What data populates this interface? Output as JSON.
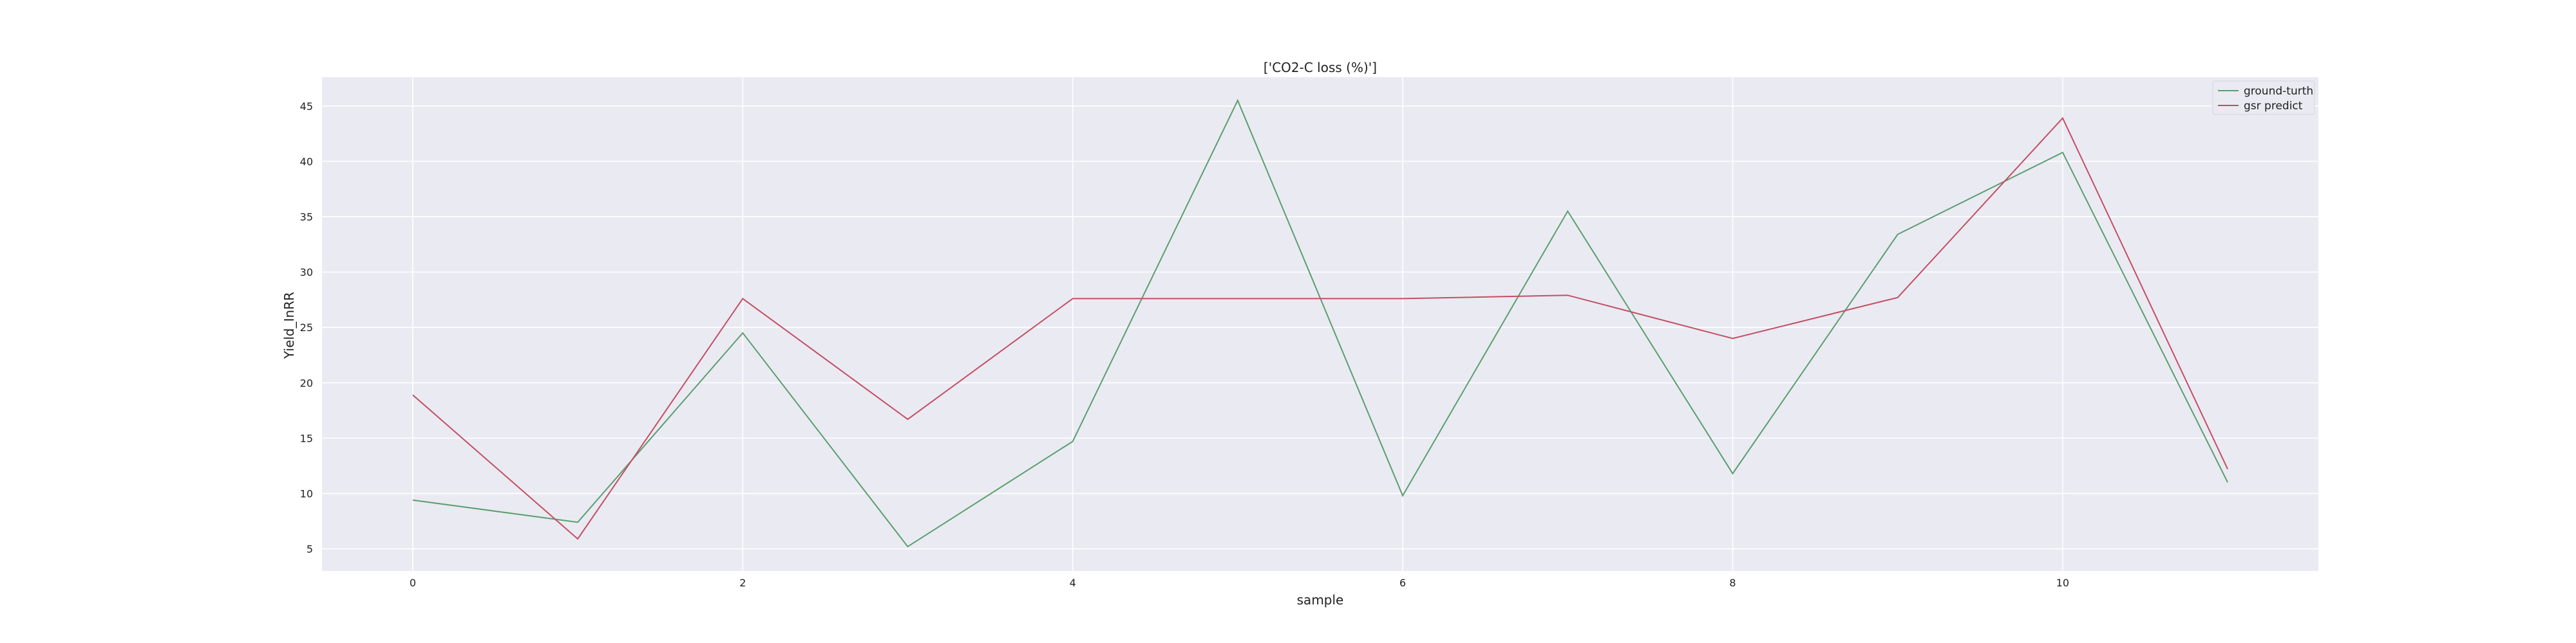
{
  "chart_data": {
    "type": "line",
    "title": "['CO2-C loss (%)']",
    "xlabel": "sample",
    "ylabel": "Yield_InRR",
    "x": [
      0,
      1,
      2,
      3,
      4,
      5,
      6,
      7,
      8,
      9,
      10,
      11
    ],
    "xlim": [
      -0.55,
      11.55
    ],
    "ylim": [
      3.0,
      47.6
    ],
    "xticks": [
      0,
      2,
      4,
      6,
      8,
      10
    ],
    "yticks": [
      5,
      10,
      15,
      20,
      25,
      30,
      35,
      40,
      45
    ],
    "grid": true,
    "legend_position": "top-right",
    "series": [
      {
        "name": "ground-turth",
        "color": "#5a9e6f",
        "values": [
          9.4,
          7.4,
          24.5,
          5.2,
          14.7,
          45.5,
          9.8,
          35.5,
          11.8,
          33.4,
          40.8,
          11.0
        ]
      },
      {
        "name": "gsr predict",
        "color": "#c44e63",
        "values": [
          18.9,
          5.9,
          27.6,
          16.7,
          27.6,
          27.6,
          27.6,
          27.9,
          24.0,
          27.7,
          43.9,
          12.2
        ]
      }
    ],
    "colors": {
      "plot_background": "#eaeaf2",
      "grid": "#ffffff",
      "text": "#222222"
    }
  }
}
